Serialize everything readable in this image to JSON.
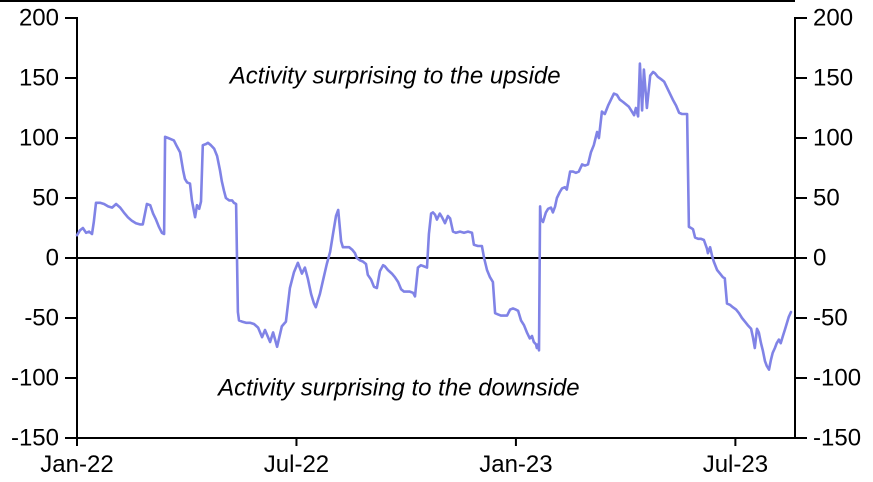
{
  "chart_data": {
    "type": "line",
    "title": "",
    "x_range": [
      0,
      19.63
    ],
    "y_range": [
      -150,
      200
    ],
    "y_tick_step": 50,
    "grid": false,
    "legend": "none",
    "zero_line": true,
    "axis_color": "#000000",
    "x_ticks": [
      {
        "pos": 0,
        "label": "Jan-22"
      },
      {
        "pos": 6,
        "label": "Jul-22"
      },
      {
        "pos": 12,
        "label": "Jan-23"
      },
      {
        "pos": 18,
        "label": "Jul-23"
      }
    ],
    "y_ticks": [
      {
        "value": 200,
        "label": "200"
      },
      {
        "value": 150,
        "label": "150"
      },
      {
        "value": 100,
        "label": "100"
      },
      {
        "value": 50,
        "label": "50"
      },
      {
        "value": 0,
        "label": "0"
      },
      {
        "value": -50,
        "label": "-50"
      },
      {
        "value": -100,
        "label": "-100"
      },
      {
        "value": -150,
        "label": "-150"
      }
    ],
    "annotations": [
      {
        "text": "Activity surprising to the upside",
        "x": 8.7,
        "y": 152
      },
      {
        "text": "Activity surprising to the downside",
        "x": 8.8,
        "y": -108
      }
    ],
    "series": [
      {
        "color": "#8083E6",
        "points": [
          [
            0.0,
            19
          ],
          [
            0.08,
            23
          ],
          [
            0.16,
            25
          ],
          [
            0.25,
            21
          ],
          [
            0.33,
            22
          ],
          [
            0.41,
            20
          ],
          [
            0.46,
            30
          ],
          [
            0.52,
            46
          ],
          [
            0.63,
            46
          ],
          [
            0.74,
            45
          ],
          [
            0.85,
            43
          ],
          [
            0.96,
            42
          ],
          [
            1.07,
            45
          ],
          [
            1.18,
            42
          ],
          [
            1.28,
            38
          ],
          [
            1.39,
            34
          ],
          [
            1.5,
            31
          ],
          [
            1.61,
            29
          ],
          [
            1.72,
            28
          ],
          [
            1.8,
            28
          ],
          [
            1.91,
            45
          ],
          [
            2.0,
            44
          ],
          [
            2.08,
            37
          ],
          [
            2.16,
            32
          ],
          [
            2.24,
            26
          ],
          [
            2.32,
            21
          ],
          [
            2.38,
            20
          ],
          [
            2.41,
            101
          ],
          [
            2.49,
            100
          ],
          [
            2.57,
            99
          ],
          [
            2.65,
            98
          ],
          [
            2.73,
            93
          ],
          [
            2.82,
            88
          ],
          [
            2.9,
            73
          ],
          [
            2.95,
            66
          ],
          [
            3.01,
            63
          ],
          [
            3.09,
            62
          ],
          [
            3.14,
            48
          ],
          [
            3.23,
            34
          ],
          [
            3.28,
            44
          ],
          [
            3.34,
            41
          ],
          [
            3.39,
            47
          ],
          [
            3.44,
            94
          ],
          [
            3.53,
            95
          ],
          [
            3.58,
            96
          ],
          [
            3.66,
            94
          ],
          [
            3.75,
            91
          ],
          [
            3.83,
            85
          ],
          [
            3.91,
            73
          ],
          [
            3.96,
            64
          ],
          [
            4.02,
            56
          ],
          [
            4.07,
            50
          ],
          [
            4.16,
            48
          ],
          [
            4.24,
            48
          ],
          [
            4.29,
            46
          ],
          [
            4.35,
            45
          ],
          [
            4.4,
            -45
          ],
          [
            4.43,
            -52
          ],
          [
            4.51,
            -53
          ],
          [
            4.62,
            -54
          ],
          [
            4.73,
            -54
          ],
          [
            4.84,
            -55
          ],
          [
            4.95,
            -58
          ],
          [
            5.06,
            -66
          ],
          [
            5.14,
            -60
          ],
          [
            5.28,
            -70
          ],
          [
            5.36,
            -62
          ],
          [
            5.47,
            -74
          ],
          [
            5.6,
            -57
          ],
          [
            5.71,
            -53
          ],
          [
            5.82,
            -25
          ],
          [
            5.93,
            -12
          ],
          [
            6.04,
            -4
          ],
          [
            6.15,
            -13
          ],
          [
            6.23,
            -8
          ],
          [
            6.31,
            -17
          ],
          [
            6.4,
            -30
          ],
          [
            6.48,
            -38
          ],
          [
            6.53,
            -41
          ],
          [
            6.59,
            -35
          ],
          [
            6.64,
            -30
          ],
          [
            6.73,
            -18
          ],
          [
            6.83,
            -5
          ],
          [
            6.92,
            5
          ],
          [
            7.0,
            20
          ],
          [
            7.08,
            35
          ],
          [
            7.14,
            40
          ],
          [
            7.22,
            14
          ],
          [
            7.27,
            9
          ],
          [
            7.35,
            9
          ],
          [
            7.44,
            9
          ],
          [
            7.52,
            7
          ],
          [
            7.6,
            4
          ],
          [
            7.65,
            0
          ],
          [
            7.74,
            -2
          ],
          [
            7.82,
            -3
          ],
          [
            7.9,
            -5
          ],
          [
            7.95,
            -14
          ],
          [
            8.04,
            -18
          ],
          [
            8.12,
            -24
          ],
          [
            8.2,
            -25
          ],
          [
            8.28,
            -11
          ],
          [
            8.37,
            -6
          ],
          [
            8.42,
            -7
          ],
          [
            8.5,
            -10
          ],
          [
            8.61,
            -13
          ],
          [
            8.69,
            -16
          ],
          [
            8.78,
            -20
          ],
          [
            8.86,
            -26
          ],
          [
            8.94,
            -28
          ],
          [
            9.02,
            -28
          ],
          [
            9.1,
            -28
          ],
          [
            9.19,
            -29
          ],
          [
            9.24,
            -32
          ],
          [
            9.32,
            -8
          ],
          [
            9.4,
            -6
          ],
          [
            9.49,
            -7
          ],
          [
            9.57,
            -8
          ],
          [
            9.62,
            20
          ],
          [
            9.68,
            37
          ],
          [
            9.73,
            38
          ],
          [
            9.79,
            36
          ],
          [
            9.84,
            32
          ],
          [
            9.92,
            37
          ],
          [
            9.98,
            34
          ],
          [
            10.06,
            29
          ],
          [
            10.14,
            35
          ],
          [
            10.2,
            33
          ],
          [
            10.28,
            22
          ],
          [
            10.36,
            21
          ],
          [
            10.47,
            22
          ],
          [
            10.58,
            21
          ],
          [
            10.69,
            22
          ],
          [
            10.8,
            21
          ],
          [
            10.85,
            11
          ],
          [
            10.96,
            10
          ],
          [
            11.07,
            10
          ],
          [
            11.13,
            0
          ],
          [
            11.21,
            -10
          ],
          [
            11.29,
            -16
          ],
          [
            11.37,
            -20
          ],
          [
            11.43,
            -46
          ],
          [
            11.51,
            -47
          ],
          [
            11.59,
            -48
          ],
          [
            11.67,
            -48
          ],
          [
            11.76,
            -48
          ],
          [
            11.84,
            -43
          ],
          [
            11.92,
            -42
          ],
          [
            12.0,
            -43
          ],
          [
            12.06,
            -44
          ],
          [
            12.14,
            -52
          ],
          [
            12.22,
            -56
          ],
          [
            12.3,
            -62
          ],
          [
            12.38,
            -67
          ],
          [
            12.44,
            -65
          ],
          [
            12.49,
            -70
          ],
          [
            12.55,
            -72
          ],
          [
            12.57,
            -75
          ],
          [
            12.6,
            -72
          ],
          [
            12.63,
            -77
          ],
          [
            12.66,
            43
          ],
          [
            12.68,
            33
          ],
          [
            12.74,
            30
          ],
          [
            12.82,
            38
          ],
          [
            12.88,
            41
          ],
          [
            12.96,
            42
          ],
          [
            13.01,
            38
          ],
          [
            13.07,
            43
          ],
          [
            13.12,
            50
          ],
          [
            13.2,
            55
          ],
          [
            13.26,
            58
          ],
          [
            13.34,
            59
          ],
          [
            13.39,
            57
          ],
          [
            13.48,
            72
          ],
          [
            13.56,
            72
          ],
          [
            13.64,
            71
          ],
          [
            13.72,
            72
          ],
          [
            13.81,
            78
          ],
          [
            13.89,
            77
          ],
          [
            13.97,
            78
          ],
          [
            14.05,
            88
          ],
          [
            14.13,
            94
          ],
          [
            14.22,
            105
          ],
          [
            14.27,
            100
          ],
          [
            14.35,
            122
          ],
          [
            14.43,
            120
          ],
          [
            14.52,
            127
          ],
          [
            14.6,
            132
          ],
          [
            14.68,
            137
          ],
          [
            14.76,
            136
          ],
          [
            14.84,
            132
          ],
          [
            14.93,
            130
          ],
          [
            15.01,
            128
          ],
          [
            15.09,
            126
          ],
          [
            15.17,
            122
          ],
          [
            15.23,
            119
          ],
          [
            15.28,
            125
          ],
          [
            15.34,
            118
          ],
          [
            15.39,
            162
          ],
          [
            15.45,
            123
          ],
          [
            15.5,
            157
          ],
          [
            15.58,
            125
          ],
          [
            15.67,
            152
          ],
          [
            15.75,
            155
          ],
          [
            15.8,
            154
          ],
          [
            15.88,
            151
          ],
          [
            15.97,
            149
          ],
          [
            16.05,
            147
          ],
          [
            16.13,
            142
          ],
          [
            16.21,
            137
          ],
          [
            16.29,
            132
          ],
          [
            16.38,
            127
          ],
          [
            16.46,
            121
          ],
          [
            16.54,
            120
          ],
          [
            16.62,
            120
          ],
          [
            16.68,
            120
          ],
          [
            16.73,
            26
          ],
          [
            16.79,
            25
          ],
          [
            16.84,
            24
          ],
          [
            16.9,
            17
          ],
          [
            16.98,
            16
          ],
          [
            17.06,
            16
          ],
          [
            17.14,
            15
          ],
          [
            17.22,
            8
          ],
          [
            17.25,
            4
          ],
          [
            17.31,
            9
          ],
          [
            17.36,
            2
          ],
          [
            17.41,
            -3
          ],
          [
            17.5,
            -10
          ],
          [
            17.58,
            -13
          ],
          [
            17.66,
            -16
          ],
          [
            17.71,
            -17
          ],
          [
            17.77,
            -38
          ],
          [
            17.85,
            -39
          ],
          [
            17.93,
            -41
          ],
          [
            18.02,
            -43
          ],
          [
            18.1,
            -46
          ],
          [
            18.18,
            -50
          ],
          [
            18.26,
            -53
          ],
          [
            18.34,
            -56
          ],
          [
            18.43,
            -59
          ],
          [
            18.48,
            -66
          ],
          [
            18.53,
            -75
          ],
          [
            18.59,
            -59
          ],
          [
            18.64,
            -62
          ],
          [
            18.7,
            -71
          ],
          [
            18.75,
            -77
          ],
          [
            18.81,
            -86
          ],
          [
            18.86,
            -90
          ],
          [
            18.92,
            -93
          ],
          [
            18.97,
            -85
          ],
          [
            19.02,
            -79
          ],
          [
            19.08,
            -75
          ],
          [
            19.13,
            -71
          ],
          [
            19.19,
            -68
          ],
          [
            19.24,
            -71
          ],
          [
            19.3,
            -65
          ],
          [
            19.35,
            -60
          ],
          [
            19.41,
            -54
          ],
          [
            19.46,
            -49
          ],
          [
            19.52,
            -45
          ]
        ]
      }
    ]
  }
}
